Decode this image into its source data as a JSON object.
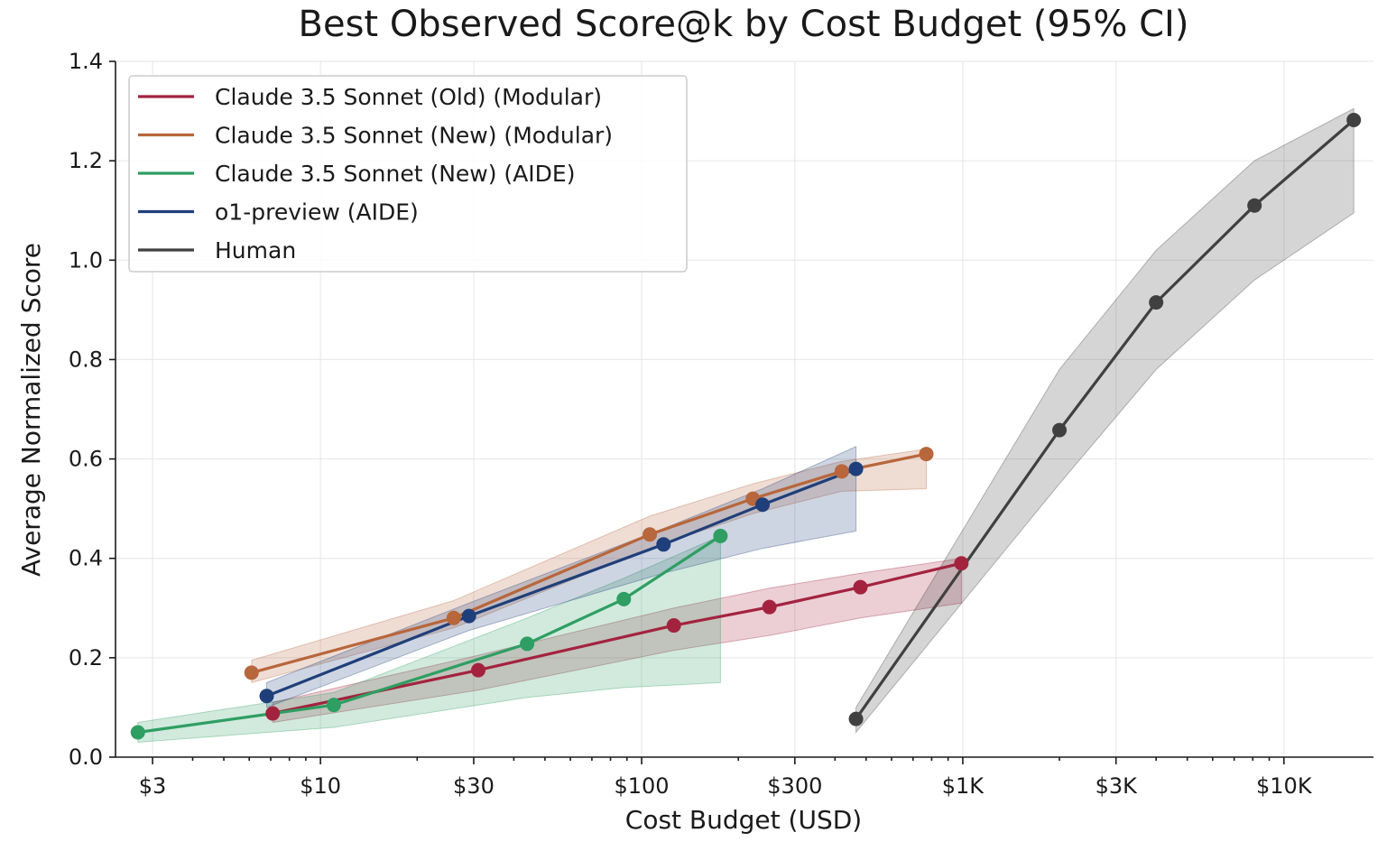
{
  "chart_data": {
    "type": "line",
    "title": "Best Observed Score@k by Cost Budget (95% CI)",
    "xlabel": "Cost Budget (USD)",
    "ylabel": "Average Normalized Score",
    "x_scale": "log",
    "xlim": [
      2.3,
      19000
    ],
    "ylim": [
      0,
      1.4
    ],
    "x_ticks": [
      {
        "value": 3,
        "label": "$3"
      },
      {
        "value": 10,
        "label": "$10"
      },
      {
        "value": 30,
        "label": "$30"
      },
      {
        "value": 100,
        "label": "$100"
      },
      {
        "value": 300,
        "label": "$300"
      },
      {
        "value": 1000,
        "label": "$1K"
      },
      {
        "value": 3000,
        "label": "$3K"
      },
      {
        "value": 10000,
        "label": "$10K"
      }
    ],
    "y_ticks": [
      {
        "value": 0.0,
        "label": "0.0"
      },
      {
        "value": 0.2,
        "label": "0.2"
      },
      {
        "value": 0.4,
        "label": "0.4"
      },
      {
        "value": 0.6,
        "label": "0.6"
      },
      {
        "value": 0.8,
        "label": "0.8"
      },
      {
        "value": 1.0,
        "label": "1.0"
      },
      {
        "value": 1.2,
        "label": "1.2"
      },
      {
        "value": 1.4,
        "label": "1.4"
      }
    ],
    "grid": true,
    "legend_position": "top-left",
    "series": [
      {
        "name": "Claude 3.5 Sonnet (Old) (Modular)",
        "color": "#a3233f",
        "x": [
          7.1,
          31,
          126,
          250,
          480,
          990
        ],
        "y": [
          0.088,
          0.175,
          0.265,
          0.302,
          0.342,
          0.39
        ],
        "ci_low": [
          0.07,
          0.135,
          0.215,
          0.245,
          0.28,
          0.31
        ],
        "ci_high": [
          0.11,
          0.205,
          0.3,
          0.34,
          0.37,
          0.4
        ]
      },
      {
        "name": "Claude 3.5 Sonnet (New) (Modular)",
        "color": "#b8663b",
        "x": [
          6.1,
          26,
          106,
          222,
          420,
          770
        ],
        "y": [
          0.17,
          0.28,
          0.448,
          0.52,
          0.575,
          0.61
        ],
        "ci_low": [
          0.15,
          0.26,
          0.42,
          0.49,
          0.535,
          0.54
        ],
        "ci_high": [
          0.195,
          0.315,
          0.485,
          0.55,
          0.595,
          0.62
        ]
      },
      {
        "name": "Claude 3.5 Sonnet (New) (AIDE)",
        "color": "#2f9e62",
        "x": [
          2.7,
          11,
          44,
          88,
          176
        ],
        "y": [
          0.05,
          0.105,
          0.228,
          0.318,
          0.445
        ],
        "ci_low": [
          0.03,
          0.06,
          0.12,
          0.14,
          0.15
        ],
        "ci_high": [
          0.07,
          0.13,
          0.28,
          0.36,
          0.445
        ]
      },
      {
        "name": "o1-preview (AIDE)",
        "color": "#1f3f7a",
        "x": [
          6.8,
          29,
          117,
          238,
          465
        ],
        "y": [
          0.123,
          0.284,
          0.428,
          0.508,
          0.58
        ],
        "ci_low": [
          0.1,
          0.255,
          0.37,
          0.42,
          0.455
        ],
        "ci_high": [
          0.15,
          0.31,
          0.46,
          0.54,
          0.625
        ]
      },
      {
        "name": "Human",
        "color": "#404040",
        "x": [
          465,
          2000,
          4000,
          8100,
          16500
        ],
        "y": [
          0.077,
          0.658,
          0.915,
          1.11,
          1.282
        ],
        "ci_low": [
          0.05,
          0.55,
          0.78,
          0.96,
          1.095
        ],
        "ci_high": [
          0.1,
          0.78,
          1.02,
          1.2,
          1.305
        ]
      }
    ]
  }
}
